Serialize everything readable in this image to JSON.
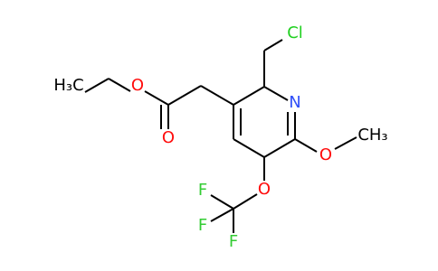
{
  "atoms": [
    {
      "label": "H₃C"
    },
    {
      "label": "O"
    },
    {
      "label": "O"
    },
    {
      "label": "N"
    },
    {
      "label": "Cl"
    },
    {
      "label": "O"
    },
    {
      "label": "CH₃"
    },
    {
      "label": "O"
    },
    {
      "label": "F"
    },
    {
      "label": "F"
    },
    {
      "label": "F"
    }
  ]
}
